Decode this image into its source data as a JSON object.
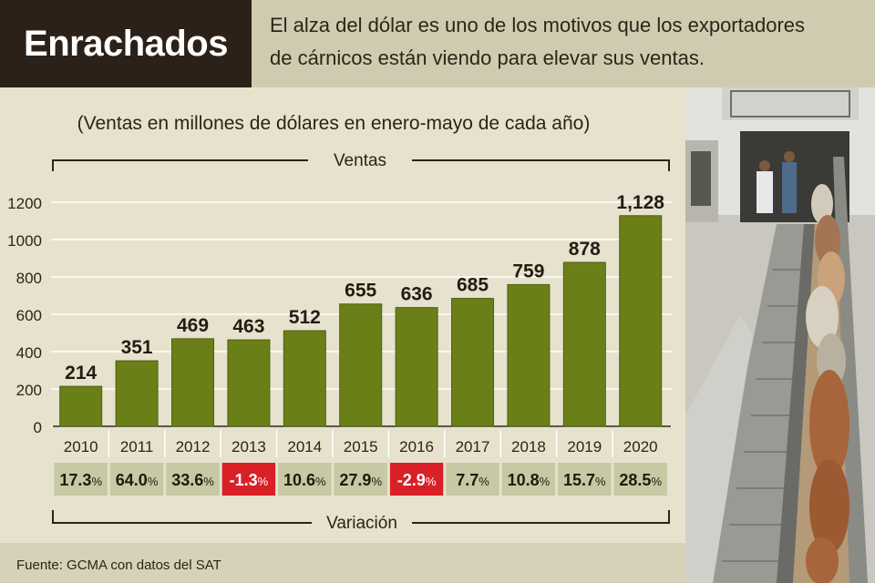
{
  "header": {
    "title": "Enrachados",
    "subtitle_line1": "El alza del dólar es uno de los motivos que los exportadores",
    "subtitle_line2": "de cárnicos están viendo para elevar sus ventas."
  },
  "footer": {
    "source": "Fuente: GCMA con datos del SAT"
  },
  "colors": {
    "bar": "#6b7f19",
    "bar_edge": "#4e5f0f",
    "positive_cell": "#c6c9a3",
    "negative_cell": "#d92027",
    "background": "#e6e2cd"
  },
  "chart_data": {
    "type": "bar",
    "title": "(Ventas en millones de dólares en enero-mayo de cada año)",
    "series_label": "Ventas",
    "variation_label": "Variación",
    "categories": [
      "2010",
      "2011",
      "2012",
      "2013",
      "2014",
      "2015",
      "2016",
      "2017",
      "2018",
      "2019",
      "2020"
    ],
    "values": [
      214,
      351,
      469,
      463,
      512,
      655,
      636,
      685,
      759,
      878,
      1128
    ],
    "value_labels": [
      "214",
      "351",
      "469",
      "463",
      "512",
      "655",
      "636",
      "685",
      "759",
      "878",
      "1,128"
    ],
    "variation_values": [
      17.3,
      64.0,
      33.6,
      -1.3,
      10.6,
      27.9,
      -2.9,
      7.7,
      10.8,
      15.7,
      28.5
    ],
    "variation_labels": [
      "17.3",
      "64.0",
      "33.6",
      "-1.3",
      "10.6",
      "27.9",
      "-2.9",
      "7.7",
      "10.8",
      "15.7",
      "28.5"
    ],
    "variation_suffix": "%",
    "yticks": [
      "0",
      "200",
      "400",
      "600",
      "800",
      "1000",
      "1200"
    ],
    "ylim": [
      0,
      1200
    ],
    "grid": true
  }
}
